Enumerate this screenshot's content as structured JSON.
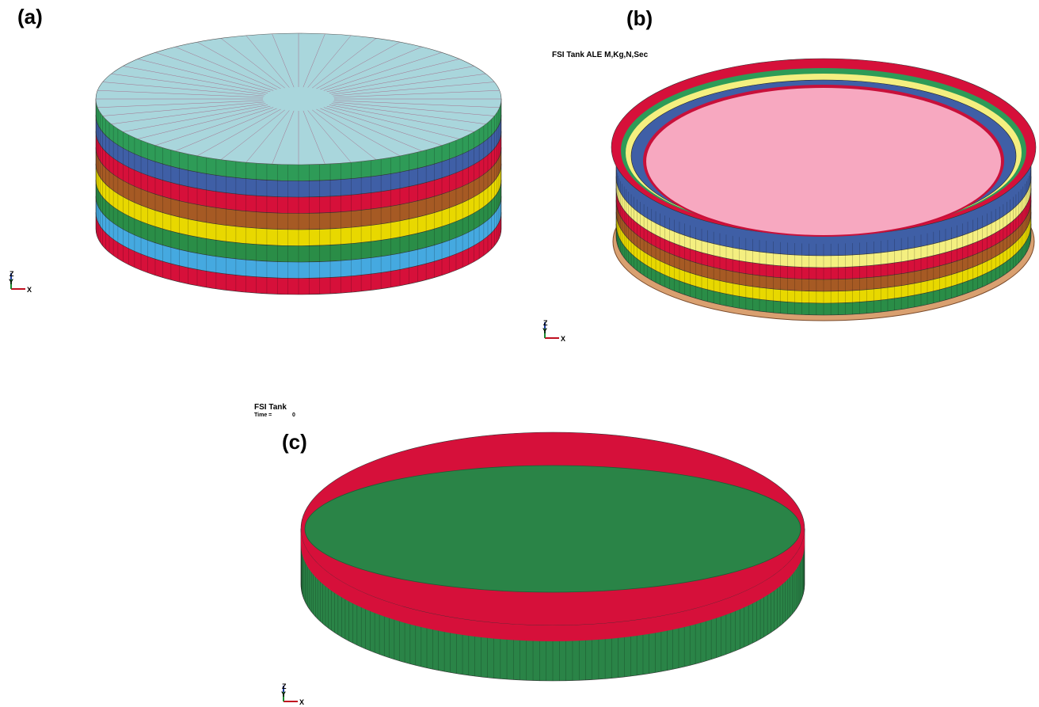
{
  "panels": [
    {
      "label": "(a)",
      "axes": {
        "z": "Z",
        "y": "Y",
        "x": "X"
      }
    },
    {
      "label": "(b)",
      "title": "FSI Tank ALE M,Kg,N,Sec",
      "axes": {
        "z": "Z",
        "y": "Y",
        "x": "X"
      }
    },
    {
      "label": "(c)",
      "title": "FSI Tank",
      "time_label": "Time =",
      "time_value": 0,
      "axes": {
        "z": "Z",
        "y": "Y",
        "x": "X"
      }
    }
  ]
}
